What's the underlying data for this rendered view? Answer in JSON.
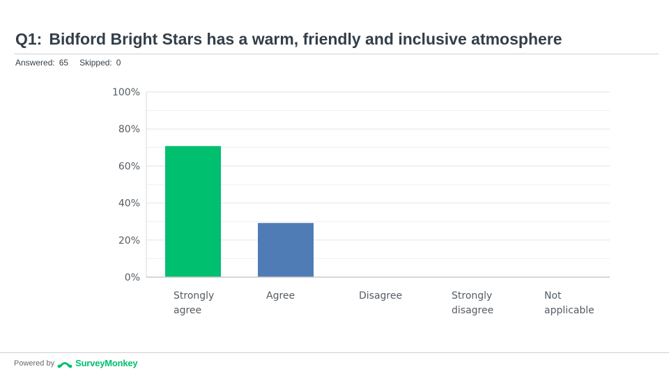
{
  "header": {
    "question_number": "Q1:",
    "question_text": "Bidford Bright Stars has a warm, friendly and inclusive atmosphere",
    "answered_label": "Answered:",
    "answered_value": "65",
    "skipped_label": "Skipped:",
    "skipped_value": "0"
  },
  "footer": {
    "powered_by": "Powered by",
    "brand": "SurveyMonkey",
    "brand_icon": "surveymonkey-logo-icon"
  },
  "chart_data": {
    "type": "bar",
    "categories": [
      [
        "Strongly",
        "agree"
      ],
      [
        "Agree"
      ],
      [
        "Disagree"
      ],
      [
        "Strongly",
        "disagree"
      ],
      [
        "Not",
        "applicable"
      ]
    ],
    "values": [
      70.77,
      29.23,
      0,
      0,
      0
    ],
    "ylim": [
      0,
      100
    ],
    "yticks": [
      "0%",
      "20%",
      "40%",
      "60%",
      "80%",
      "100%"
    ],
    "colors": [
      "#00bf6f",
      "#507cb6",
      "#f05b24",
      "#ebca25",
      "#6bc8cd"
    ],
    "grid": true,
    "legend": "none"
  }
}
